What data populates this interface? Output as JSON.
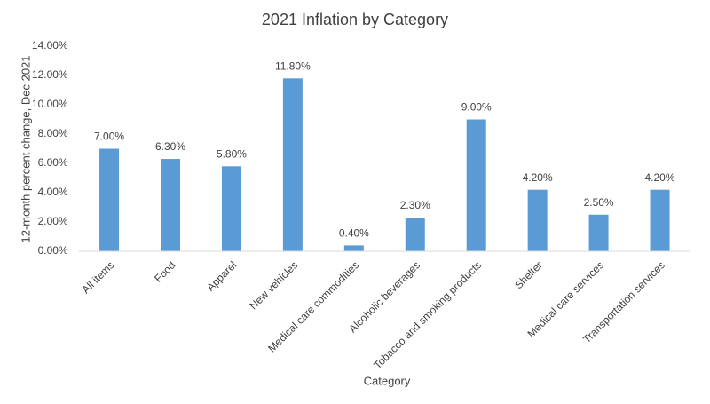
{
  "chart_data": {
    "type": "bar",
    "title": "2021 Inflation by Category",
    "x_label": "Category",
    "y_label": "12-month percent change, Dec 2021",
    "categories": [
      "All items",
      "Food",
      "Apparel",
      "New vehicles",
      "Medical care commodities",
      "Alcoholic beverages",
      "Tobacco and smoking products",
      "Shelter",
      "Medical care services",
      "Transportation services"
    ],
    "values": [
      7,
      6.3,
      5.8,
      11.8,
      0.4,
      2.3,
      9,
      4.2,
      2.5,
      4.2
    ],
    "value_labels": [
      "7.00%",
      "6.30%",
      "5.80%",
      "11.80%",
      "0.40%",
      "2.30%",
      "9.00%",
      "4.20%",
      "2.50%",
      "4.20%"
    ],
    "color": "#5b9bd5",
    "ylim": [
      0,
      14
    ],
    "yticks": [
      {
        "value": 0,
        "label": "0.00%"
      },
      {
        "value": 2,
        "label": "2.00%"
      },
      {
        "value": 4,
        "label": "4.00%"
      },
      {
        "value": 6,
        "label": "6.00%"
      },
      {
        "value": 8,
        "label": "8.00%"
      },
      {
        "value": 10,
        "label": "10.00%"
      },
      {
        "value": 12,
        "label": "12.00%"
      },
      {
        "value": 14,
        "label": "14.00%"
      }
    ],
    "grid": false
  }
}
